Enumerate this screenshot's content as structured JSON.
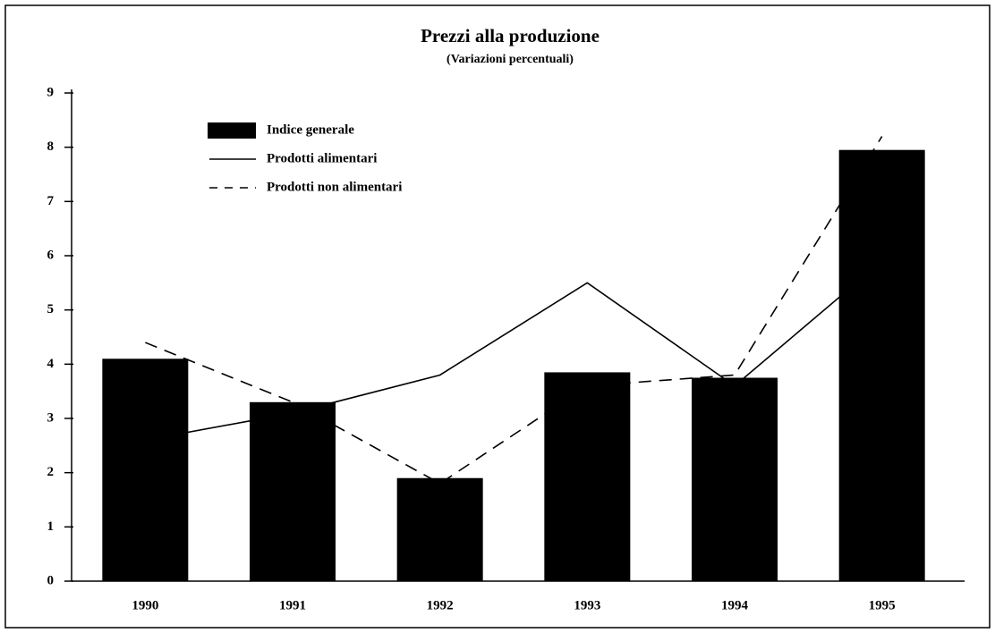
{
  "chart_data": {
    "type": "bar_line",
    "title": "Prezzi alla produzione",
    "subtitle": "(Variazioni percentuali)",
    "categories": [
      "1990",
      "1991",
      "1992",
      "1993",
      "1994",
      "1995"
    ],
    "series": [
      {
        "name": "Indice generale",
        "type": "bar",
        "color": "#000000",
        "values": [
          4.1,
          3.3,
          1.9,
          3.85,
          3.75,
          7.95
        ]
      },
      {
        "name": "Prodotti alimentari",
        "type": "line",
        "dash": "solid",
        "color": "#000000",
        "values": [
          2.6,
          3.1,
          3.8,
          5.5,
          3.6,
          5.9
        ]
      },
      {
        "name": "Prodotti non alimentari",
        "type": "line",
        "dash": "dashed",
        "color": "#000000",
        "values": [
          4.4,
          3.3,
          1.8,
          3.6,
          3.8,
          8.2
        ]
      }
    ],
    "ylim": [
      0,
      9
    ],
    "yticks": [
      0,
      1,
      2,
      3,
      4,
      5,
      6,
      7,
      8,
      9
    ],
    "legend": "top-left"
  }
}
